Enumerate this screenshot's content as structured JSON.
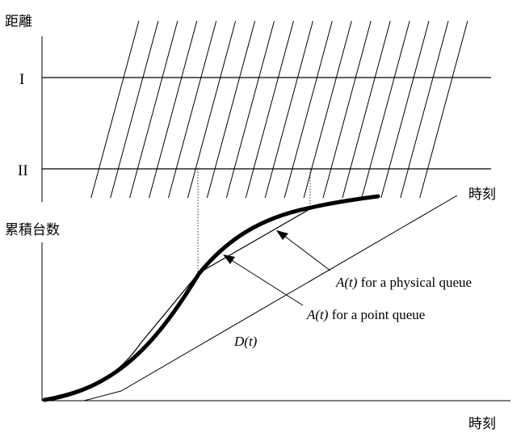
{
  "top_panel": {
    "y_axis_label": "距離",
    "x_axis_label": "時刻",
    "detector_1_label": "I",
    "detector_2_label": "II"
  },
  "bottom_panel": {
    "y_axis_label": "累積台数",
    "x_axis_label": "時刻",
    "annotations": {
      "physical_queue": {
        "italic": "A(t)",
        "rest": " for a physical queue"
      },
      "point_queue": {
        "italic": "A(t)",
        "rest": " for a point queue"
      },
      "departure": {
        "italic": "D(t)",
        "rest": ""
      }
    }
  }
}
